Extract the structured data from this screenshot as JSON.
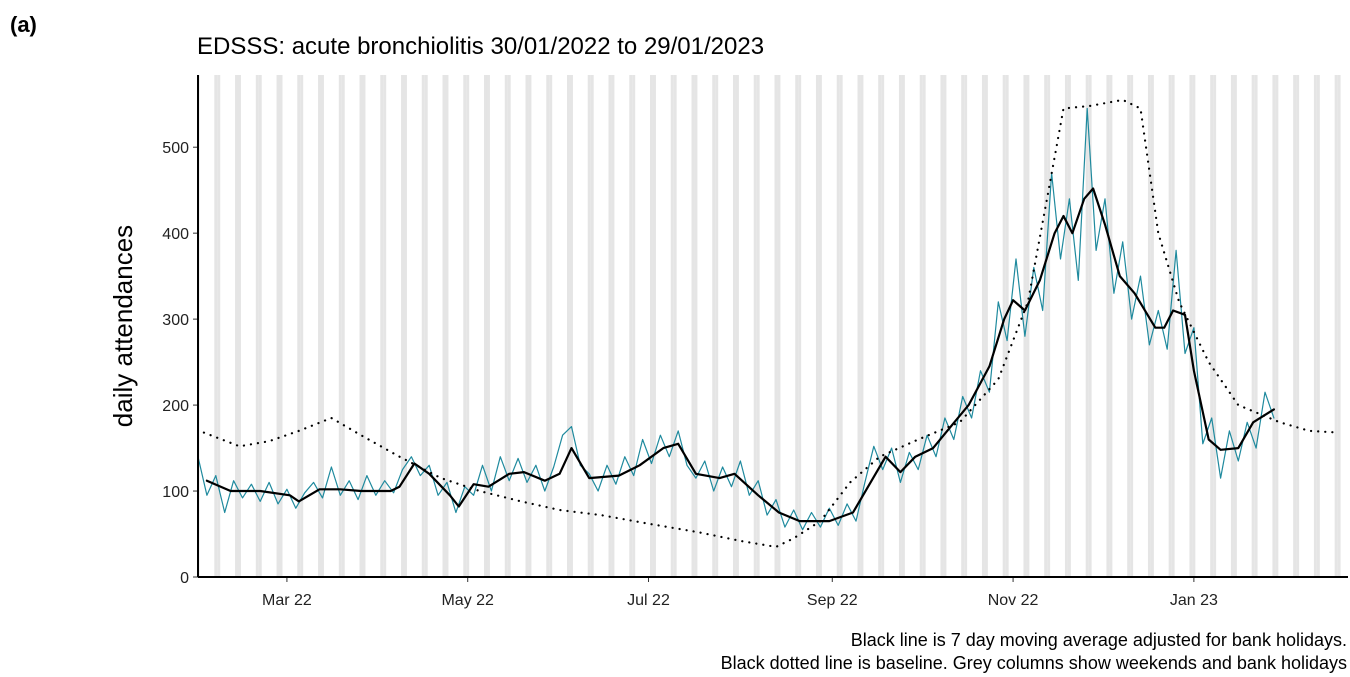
{
  "chart_data": {
    "type": "line",
    "panel_label": "(a)",
    "title": "EDSSS: acute bronchiolitis 30/01/2022 to 29/01/2023",
    "y_label": "daily attendances",
    "notes": [
      "Black line is 7 day moving average adjusted for bank holidays.",
      "Black dotted line is baseline. Grey columns show weekends and bank holidays"
    ],
    "xlim": [
      0,
      388
    ],
    "xticks": [
      {
        "value": 30,
        "label": "Mar 22"
      },
      {
        "value": 91,
        "label": "May 22"
      },
      {
        "value": 152,
        "label": "Jul 22"
      },
      {
        "value": 214,
        "label": "Sep 22"
      },
      {
        "value": 275,
        "label": "Nov 22"
      },
      {
        "value": 336,
        "label": "Jan 23"
      }
    ],
    "ylim": [
      0,
      584
    ],
    "yticks": [
      0,
      100,
      200,
      300,
      400,
      500
    ],
    "weekend_color": "#e5e5e5",
    "series": [
      {
        "color": "#1f8a9e",
        "style": "solid",
        "width": 1.2,
        "x": [
          0,
          3,
          6,
          9,
          12,
          15,
          18,
          21,
          24,
          27,
          30,
          33,
          36,
          39,
          42,
          45,
          48,
          51,
          54,
          57,
          60,
          63,
          66,
          69,
          72,
          75,
          78,
          81,
          84,
          87,
          90,
          93,
          96,
          99,
          102,
          105,
          108,
          111,
          114,
          117,
          120,
          123,
          126,
          129,
          132,
          135,
          138,
          141,
          144,
          147,
          150,
          153,
          156,
          159,
          162,
          165,
          168,
          171,
          174,
          177,
          180,
          183,
          186,
          189,
          192,
          195,
          198,
          201,
          204,
          207,
          210,
          213,
          216,
          219,
          222,
          225,
          228,
          231,
          234,
          237,
          240,
          243,
          246,
          249,
          252,
          255,
          258,
          261,
          264,
          267,
          270,
          273,
          276,
          279,
          282,
          285,
          288,
          291,
          294,
          297,
          300,
          303,
          306,
          309,
          312,
          315,
          318,
          321,
          324,
          327,
          330,
          333,
          336,
          339,
          342,
          345,
          348,
          351,
          354,
          357,
          360,
          363
        ],
        "values": [
          140,
          95,
          118,
          75,
          112,
          92,
          108,
          88,
          110,
          85,
          102,
          80,
          98,
          110,
          92,
          128,
          95,
          112,
          90,
          118,
          95,
          112,
          98,
          125,
          140,
          118,
          130,
          95,
          110,
          75,
          105,
          95,
          130,
          100,
          140,
          112,
          138,
          110,
          130,
          100,
          128,
          165,
          175,
          130,
          120,
          100,
          130,
          108,
          140,
          118,
          160,
          132,
          165,
          140,
          170,
          130,
          115,
          135,
          100,
          128,
          105,
          135,
          95,
          112,
          72,
          90,
          58,
          78,
          55,
          75,
          58,
          80,
          60,
          85,
          65,
          110,
          152,
          125,
          150,
          110,
          145,
          125,
          165,
          140,
          185,
          160,
          210,
          185,
          240,
          215,
          320,
          275,
          370,
          280,
          360,
          310,
          470,
          370,
          440,
          345,
          545,
          380,
          440,
          330,
          390,
          300,
          350,
          270,
          310,
          265,
          380,
          260,
          290,
          155,
          185,
          115,
          170,
          135,
          180,
          150,
          215,
          185
        ]
      },
      {
        "color": "#000000",
        "style": "solid",
        "width": 2.2,
        "x": [
          3,
          11,
          21,
          31,
          34,
          41,
          48,
          55,
          65,
          68,
          73,
          78,
          85,
          88,
          93,
          98,
          105,
          110,
          117,
          122,
          126,
          132,
          142,
          149,
          157,
          162,
          168,
          176,
          181,
          189,
          196,
          203,
          213,
          221,
          232,
          237,
          242,
          248,
          254,
          260,
          267,
          272,
          275,
          279,
          284,
          289,
          292,
          295,
          299,
          302,
          306,
          311,
          316,
          323,
          326,
          329,
          333,
          336,
          341,
          345,
          351,
          356,
          363
        ],
        "values": [
          112,
          100,
          100,
          95,
          88,
          102,
          102,
          100,
          100,
          105,
          132,
          120,
          95,
          82,
          108,
          105,
          120,
          122,
          112,
          120,
          150,
          115,
          118,
          130,
          150,
          155,
          120,
          115,
          120,
          95,
          75,
          65,
          65,
          75,
          140,
          122,
          140,
          150,
          175,
          200,
          245,
          300,
          322,
          310,
          345,
          400,
          420,
          400,
          440,
          452,
          410,
          350,
          330,
          290,
          290,
          310,
          305,
          240,
          160,
          148,
          150,
          180,
          195
        ]
      },
      {
        "color": "#000000",
        "style": "dotted",
        "width": 2.2,
        "x": [
          2,
          14,
          24,
          34,
          45,
          55,
          68,
          82,
          95,
          109,
          122,
          136,
          152,
          169,
          183,
          195,
          201,
          210,
          220,
          230,
          243,
          257,
          270,
          280,
          287,
          292,
          301,
          312,
          318,
          324,
          331,
          341,
          351,
          365,
          375,
          385
        ],
        "values": [
          168,
          152,
          158,
          170,
          185,
          165,
          140,
          115,
          100,
          88,
          78,
          72,
          62,
          52,
          42,
          35,
          45,
          65,
          110,
          140,
          160,
          180,
          230,
          320,
          450,
          545,
          548,
          555,
          545,
          400,
          320,
          250,
          200,
          180,
          170,
          168
        ]
      }
    ]
  }
}
